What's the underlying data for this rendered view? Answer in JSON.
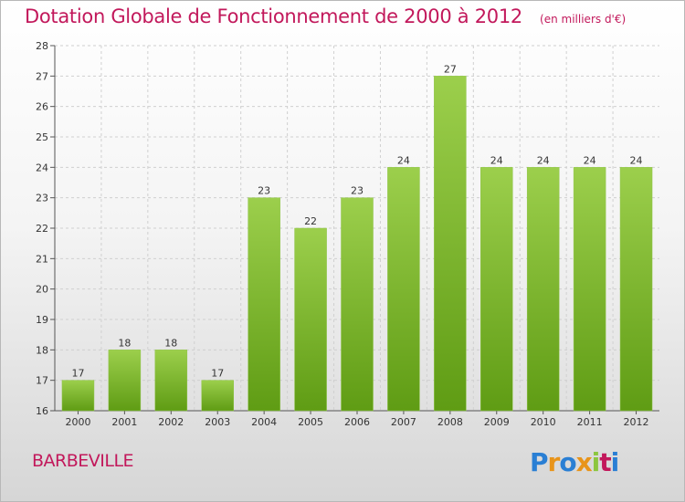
{
  "header": {
    "title": "Dotation Globale de Fonctionnement de 2000 à 2012",
    "subtitle": "(en milliers d'€)"
  },
  "footer": {
    "place_name": "BARBEVILLE",
    "logo_text": "Proxiti",
    "logo_colors": [
      "#2a7fd4",
      "#e8941a",
      "#2a7fd4",
      "#e8941a",
      "#8cc63f",
      "#c2185b",
      "#2a7fd4"
    ]
  },
  "chart_data": {
    "type": "bar",
    "categories": [
      "2000",
      "2001",
      "2002",
      "2003",
      "2004",
      "2005",
      "2006",
      "2007",
      "2008",
      "2009",
      "2010",
      "2011",
      "2012"
    ],
    "values": [
      17,
      18,
      18,
      17,
      23,
      22,
      23,
      24,
      27,
      24,
      24,
      24,
      24
    ],
    "ylim": [
      16,
      28
    ],
    "yticks": [
      16,
      17,
      18,
      19,
      20,
      21,
      22,
      23,
      24,
      25,
      26,
      27,
      28
    ],
    "grid": true,
    "bar_color_top": "#9ccf4c",
    "bar_color_bottom": "#5f9c14"
  }
}
